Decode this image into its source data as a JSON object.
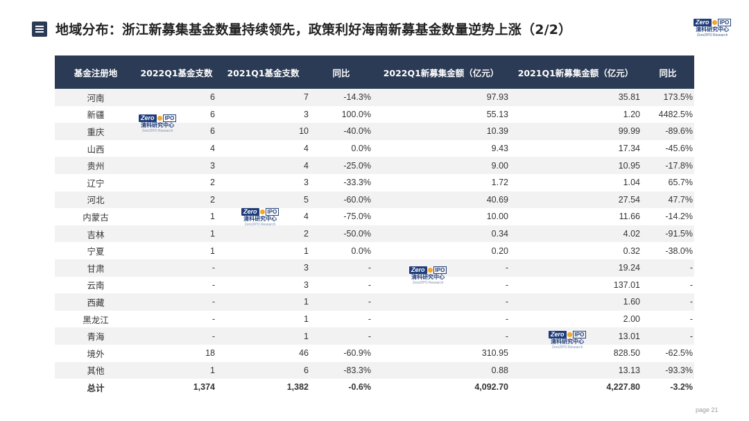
{
  "header": {
    "title": "地域分布：浙江新募集基金数量持续领先，政策利好海南新募基金数量逆势上涨（2/2）",
    "menu_icon": "menu-icon"
  },
  "logo": {
    "zero": "Zero",
    "ipo": "IPO",
    "cn": "清科研究中心",
    "en": "Zero2IPO Research"
  },
  "table": {
    "headers": [
      "基金注册地",
      "2022Q1基金支数",
      "2021Q1基金支数",
      "同比",
      "2022Q1新募集金额（亿元）",
      "2021Q1新募集金额（亿元）",
      "同比"
    ],
    "rows": [
      [
        "河南",
        "6",
        "7",
        "-14.3%",
        "97.93",
        "35.81",
        "173.5%"
      ],
      [
        "新疆",
        "6",
        "3",
        "100.0%",
        "55.13",
        "1.20",
        "4482.5%"
      ],
      [
        "重庆",
        "6",
        "10",
        "-40.0%",
        "10.39",
        "99.99",
        "-89.6%"
      ],
      [
        "山西",
        "4",
        "4",
        "0.0%",
        "9.43",
        "17.34",
        "-45.6%"
      ],
      [
        "贵州",
        "3",
        "4",
        "-25.0%",
        "9.00",
        "10.95",
        "-17.8%"
      ],
      [
        "辽宁",
        "2",
        "3",
        "-33.3%",
        "1.72",
        "1.04",
        "65.7%"
      ],
      [
        "河北",
        "2",
        "5",
        "-60.0%",
        "40.69",
        "27.54",
        "47.7%"
      ],
      [
        "内蒙古",
        "1",
        "4",
        "-75.0%",
        "10.00",
        "11.66",
        "-14.2%"
      ],
      [
        "吉林",
        "1",
        "2",
        "-50.0%",
        "0.34",
        "4.02",
        "-91.5%"
      ],
      [
        "宁夏",
        "1",
        "1",
        "0.0%",
        "0.20",
        "0.32",
        "-38.0%"
      ],
      [
        "甘肃",
        "-",
        "3",
        "-",
        "-",
        "19.24",
        "-"
      ],
      [
        "云南",
        "-",
        "3",
        "-",
        "-",
        "137.01",
        "-"
      ],
      [
        "西藏",
        "-",
        "1",
        "-",
        "-",
        "1.60",
        "-"
      ],
      [
        "黑龙江",
        "-",
        "1",
        "-",
        "-",
        "2.00",
        "-"
      ],
      [
        "青海",
        "-",
        "1",
        "-",
        "-",
        "13.01",
        "-"
      ],
      [
        "境外",
        "18",
        "46",
        "-60.9%",
        "310.95",
        "828.50",
        "-62.5%"
      ],
      [
        "其他",
        "1",
        "6",
        "-83.3%",
        "0.88",
        "13.13",
        "-93.3%"
      ]
    ],
    "total": [
      "总计",
      "1,374",
      "1,382",
      "-0.6%",
      "4,092.70",
      "4,227.80",
      "-3.2%"
    ]
  },
  "footer": {
    "page": "page  21"
  },
  "colors": {
    "header_bg": "#2b3a55",
    "row_stripe": "#f2f2f2",
    "logo_blue": "#1f3d7a",
    "logo_orange": "#f5a623"
  }
}
